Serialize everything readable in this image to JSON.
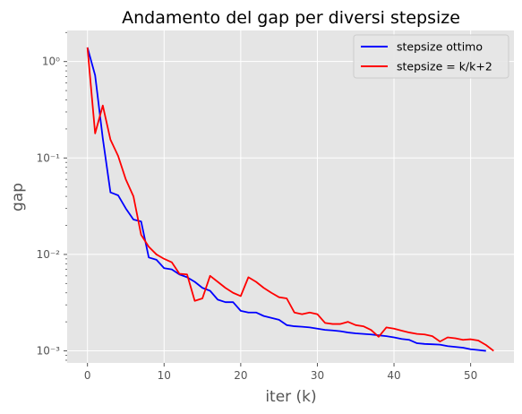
{
  "chart_data": {
    "type": "line",
    "title": "Andamento del gap per diversi stepsize",
    "xlabel": "iter (k)",
    "ylabel": "gap",
    "yscale": "log",
    "xlim": [
      -2.65,
      55.65
    ],
    "ylim": [
      0.00075,
      2.1
    ],
    "x_ticks": [
      0,
      10,
      20,
      30,
      40,
      50
    ],
    "x_tick_labels": [
      "0",
      "10",
      "20",
      "30",
      "40",
      "50"
    ],
    "y_ticks": [
      0.001,
      0.01,
      0.1,
      1
    ],
    "y_tick_labels": [
      "10⁻³",
      "10⁻²",
      "10⁻¹",
      "10⁰"
    ],
    "grid": true,
    "legend_position": "top-right",
    "background": "#e5e5e5",
    "series": [
      {
        "name": "stepsize ottimo",
        "color": "#0000ff",
        "x": [
          0,
          1,
          2,
          3,
          4,
          5,
          6,
          7,
          8,
          9,
          10,
          11,
          12,
          13,
          14,
          15,
          16,
          17,
          18,
          19,
          20,
          21,
          22,
          23,
          24,
          25,
          26,
          27,
          28,
          29,
          30,
          31,
          32,
          33,
          34,
          35,
          36,
          37,
          38,
          39,
          40,
          41,
          42,
          43,
          44,
          45,
          46,
          47,
          48,
          49,
          50,
          51,
          52
        ],
        "y": [
          1.4,
          0.72,
          0.16,
          0.044,
          0.041,
          0.03,
          0.023,
          0.022,
          0.0093,
          0.0088,
          0.0072,
          0.007,
          0.0062,
          0.0058,
          0.0052,
          0.0045,
          0.0042,
          0.0034,
          0.0032,
          0.0032,
          0.0026,
          0.0025,
          0.0025,
          0.0023,
          0.0022,
          0.0021,
          0.00185,
          0.0018,
          0.00178,
          0.00175,
          0.0017,
          0.00165,
          0.00163,
          0.0016,
          0.00155,
          0.00152,
          0.0015,
          0.00148,
          0.00145,
          0.00142,
          0.00138,
          0.00133,
          0.0013,
          0.0012,
          0.00118,
          0.00117,
          0.00116,
          0.00112,
          0.0011,
          0.00108,
          0.00104,
          0.00102,
          0.001
        ]
      },
      {
        "name": "stepsize = k/k+2",
        "color": "#ff0000",
        "x": [
          0,
          1,
          2,
          3,
          4,
          5,
          6,
          7,
          8,
          9,
          10,
          11,
          12,
          13,
          14,
          15,
          16,
          17,
          18,
          19,
          20,
          21,
          22,
          23,
          24,
          25,
          26,
          27,
          28,
          29,
          30,
          31,
          32,
          33,
          34,
          35,
          36,
          37,
          38,
          39,
          40,
          41,
          42,
          43,
          44,
          45,
          46,
          47,
          48,
          49,
          50,
          51,
          52,
          53
        ],
        "y": [
          1.4,
          0.18,
          0.35,
          0.155,
          0.105,
          0.06,
          0.04,
          0.016,
          0.012,
          0.01,
          0.009,
          0.0083,
          0.0063,
          0.0062,
          0.0033,
          0.0035,
          0.006,
          0.0052,
          0.0045,
          0.004,
          0.0037,
          0.0058,
          0.0052,
          0.0045,
          0.004,
          0.0036,
          0.0035,
          0.0025,
          0.0024,
          0.0025,
          0.0024,
          0.00195,
          0.0019,
          0.0019,
          0.002,
          0.00185,
          0.0018,
          0.00165,
          0.0014,
          0.00175,
          0.0017,
          0.00162,
          0.00155,
          0.0015,
          0.00148,
          0.00142,
          0.00125,
          0.00138,
          0.00135,
          0.0013,
          0.00132,
          0.00128,
          0.00115,
          0.001
        ]
      }
    ]
  }
}
